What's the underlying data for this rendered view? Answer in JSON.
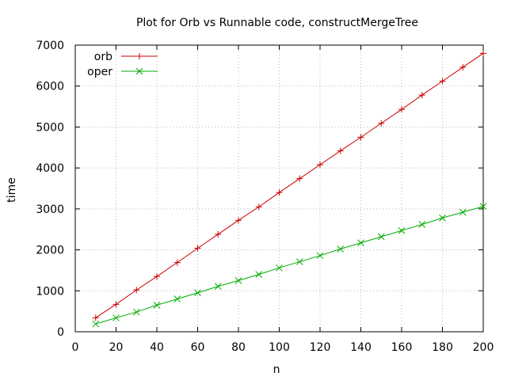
{
  "chart_data": {
    "type": "line",
    "title": "Plot for Orb vs Runnable code, constructMergeTree",
    "xlabel": "n",
    "ylabel": "time",
    "xlim": [
      0,
      200
    ],
    "ylim": [
      0,
      7000
    ],
    "x_ticks": [
      0,
      20,
      40,
      60,
      80,
      100,
      120,
      140,
      160,
      180,
      200
    ],
    "y_ticks": [
      0,
      1000,
      2000,
      3000,
      4000,
      5000,
      6000,
      7000
    ],
    "grid": true,
    "legend_position": "top-left",
    "x": [
      10,
      20,
      30,
      40,
      50,
      60,
      70,
      80,
      90,
      100,
      110,
      120,
      130,
      140,
      150,
      160,
      170,
      180,
      190,
      200
    ],
    "series": [
      {
        "name": "orb",
        "color": "#cc0000",
        "marker": "plus",
        "values": [
          340,
          670,
          1020,
          1350,
          1690,
          2040,
          2380,
          2720,
          3050,
          3400,
          3740,
          4080,
          4420,
          4750,
          5090,
          5430,
          5780,
          6120,
          6460,
          6800
        ]
      },
      {
        "name": "oper",
        "color": "#00aa00",
        "marker": "cross",
        "values": [
          190,
          340,
          480,
          650,
          800,
          950,
          1110,
          1250,
          1400,
          1560,
          1710,
          1860,
          2020,
          2170,
          2320,
          2470,
          2620,
          2780,
          2920,
          3060
        ]
      }
    ]
  }
}
